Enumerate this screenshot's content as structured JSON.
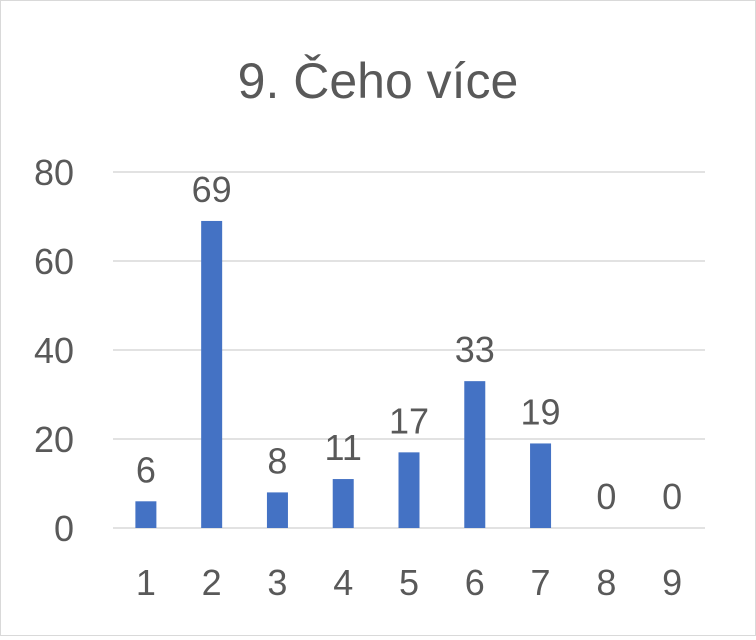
{
  "chart_data": {
    "type": "bar",
    "title": "9. Čeho více",
    "xlabel": "",
    "ylabel": "",
    "categories": [
      "1",
      "2",
      "3",
      "4",
      "5",
      "6",
      "7",
      "8",
      "9"
    ],
    "values": [
      6,
      69,
      8,
      11,
      17,
      33,
      19,
      0,
      0
    ],
    "ylim": [
      0,
      80
    ],
    "yticks": [
      0,
      20,
      40,
      60,
      80
    ],
    "grid": true,
    "legend": "none",
    "bar_color": "#4472C4",
    "gridline_color": "#d9d9d9",
    "text_color": "#595959"
  }
}
